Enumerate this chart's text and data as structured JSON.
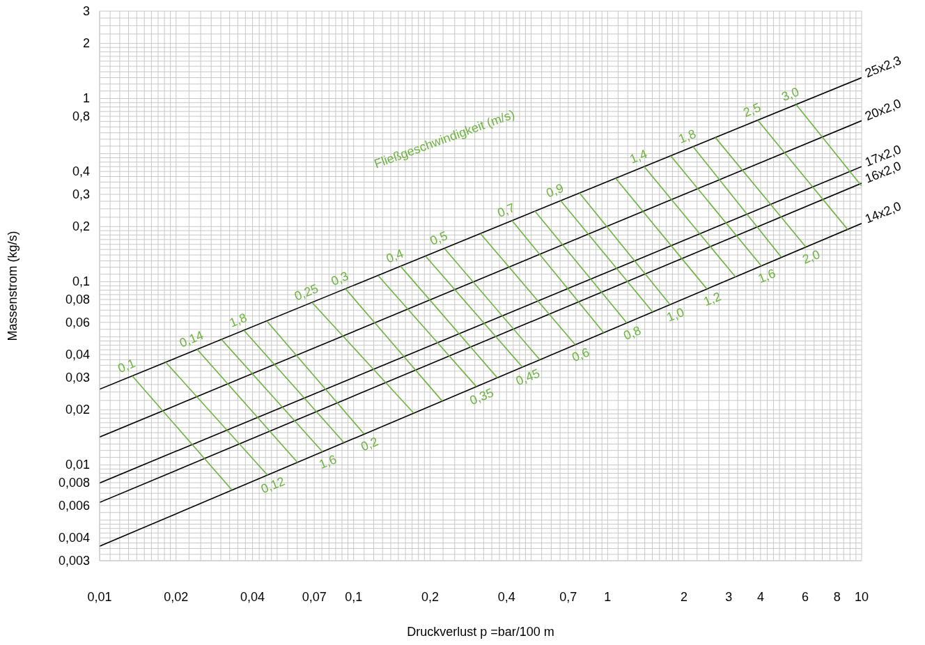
{
  "chart_data": {
    "type": "line",
    "xlabel": "Druckverlust  p =bar/100 m",
    "ylabel": "Massenstrom (kg/s)",
    "log": "xy",
    "grid": true,
    "marker": "none",
    "line_style": "solid",
    "xlim": [
      0.01,
      10
    ],
    "ylim": [
      0.003,
      3
    ],
    "xticks": [
      {
        "value": 0.01,
        "label": "0,01"
      },
      {
        "value": 0.02,
        "label": "0,02"
      },
      {
        "value": 0.04,
        "label": "0,04"
      },
      {
        "value": 0.07,
        "label": "0,07"
      },
      {
        "value": 0.1,
        "label": "0,1"
      },
      {
        "value": 0.2,
        "label": "0,2"
      },
      {
        "value": 0.4,
        "label": "0,4"
      },
      {
        "value": 0.7,
        "label": "0,7"
      },
      1,
      2,
      3,
      4,
      6,
      8,
      10
    ],
    "yticks": [
      {
        "value": 0.003,
        "label": "0,003"
      },
      {
        "value": 0.004,
        "label": "0,004"
      },
      {
        "value": 0.006,
        "label": "0,006"
      },
      {
        "value": 0.008,
        "label": "0,008"
      },
      {
        "value": 0.01,
        "label": "0,01"
      },
      {
        "value": 0.02,
        "label": "0,02"
      },
      {
        "value": 0.03,
        "label": "0,03"
      },
      {
        "value": 0.04,
        "label": "0,04"
      },
      {
        "value": 0.06,
        "label": "0,06"
      },
      {
        "value": 0.08,
        "label": "0,08"
      },
      {
        "value": 0.1,
        "label": "0,1"
      },
      {
        "value": 0.2,
        "label": "0,2"
      },
      {
        "value": 0.3,
        "label": "0,3"
      },
      {
        "value": 0.4,
        "label": "0,4"
      },
      {
        "value": 0.8,
        "label": "0,8"
      },
      1,
      2,
      3
    ],
    "annotations": [
      "Fließgeschwindigkeit (m/s)"
    ],
    "series": [
      {
        "name": "25x2,3",
        "color": "#000000",
        "x": [
          10,
          0.01
        ],
        "values": [
          1.3,
          0.0259
        ]
      },
      {
        "name": "20x2,0",
        "color": "#000000",
        "x": [
          10,
          0.01
        ],
        "values": [
          0.757,
          0.0142
        ]
      },
      {
        "name": "17x2,0",
        "color": "#000000",
        "x": [
          10,
          0.01
        ],
        "values": [
          0.425,
          0.00797
        ]
      },
      {
        "name": "16x2,0",
        "color": "#000000",
        "x": [
          10,
          0.01
        ],
        "values": [
          0.345,
          0.00624
        ]
      },
      {
        "name": "14x2,0",
        "color": "#000000",
        "x": [
          10,
          0.01
        ],
        "values": [
          0.208,
          0.0036
        ]
      },
      {
        "name": "0,1",
        "color": "#6db33f",
        "x": [
          0.01345,
          0.0332
        ],
        "values": [
          0.0306,
          0.00729
        ]
      },
      {
        "name": "0,12",
        "color": "#6db33f",
        "x": [
          0.0458,
          0.0182
        ],
        "values": [
          0.00881,
          0.0364
        ]
      },
      {
        "name": "0,14",
        "color": "#6db33f",
        "x": [
          0.0242,
          0.0601
        ],
        "values": [
          0.0428,
          0.01033
        ]
      },
      {
        "name": "1,6",
        "color": "#6db33f",
        "x": [
          0.0754,
          0.0302
        ],
        "values": [
          0.0118,
          0.0484
        ]
      },
      {
        "name": "1,8",
        "color": "#6db33f",
        "x": [
          0.037,
          0.0917
        ],
        "values": [
          0.0543,
          0.01324
        ]
      },
      {
        "name": "0,2",
        "color": "#6db33f",
        "x": [
          0.11,
          0.0455
        ],
        "values": [
          0.01475,
          0.0611
        ]
      },
      {
        "name": "0,25",
        "color": "#6db33f",
        "x": [
          0.0686,
          0.1724
        ],
        "values": [
          0.0771,
          0.0192
        ]
      },
      {
        "name": "0,3",
        "color": "#6db33f",
        "x": [
          0.0929,
          0.2234
        ],
        "values": [
          0.0916,
          0.0223
        ]
      },
      {
        "name": "0,35",
        "color": "#6db33f",
        "x": [
          0.304,
          0.125
        ],
        "values": [
          0.0268,
          0.108
        ]
      },
      {
        "name": "0,4",
        "color": "#6db33f",
        "x": [
          0.153,
          0.368
        ],
        "values": [
          0.1216,
          0.0299
        ]
      },
      {
        "name": "0,45",
        "color": "#6db33f",
        "x": [
          0.462,
          0.192
        ],
        "values": [
          0.0342,
          0.138
        ]
      },
      {
        "name": "0,5",
        "color": "#6db33f",
        "x": [
          0.228,
          0.541
        ],
        "values": [
          0.152,
          0.0375
        ]
      },
      {
        "name": "0,6",
        "color": "#6db33f",
        "x": [
          0.746,
          0.316
        ],
        "values": [
          0.0453,
          0.183
        ]
      },
      {
        "name": "0,7",
        "color": "#6db33f",
        "x": [
          0.42,
          0.966
        ],
        "values": [
          0.216,
          0.0527
        ]
      },
      {
        "name": "0,8",
        "color": "#6db33f",
        "x": [
          1.19,
          0.517
        ],
        "values": [
          0.0596,
          0.243
        ]
      },
      {
        "name": "0,9",
        "color": "#6db33f",
        "x": [
          0.653,
          1.503
        ],
        "values": [
          0.277,
          0.0684
        ]
      },
      {
        "name": "1,0",
        "color": "#6db33f",
        "x": [
          1.761,
          0.775
        ],
        "values": [
          0.075,
          0.305
        ]
      },
      {
        "name": "1,2",
        "color": "#6db33f",
        "x": [
          2.46,
          1.076
        ],
        "values": [
          0.0913,
          0.367
        ]
      },
      {
        "name": "1,4",
        "color": "#6db33f",
        "x": [
          1.394,
          3.19
        ],
        "values": [
          0.425,
          0.106
        ]
      },
      {
        "name": "1,6",
        "color": "#6db33f",
        "x": [
          4.03,
          1.772
        ],
        "values": [
          0.122,
          0.487
        ]
      },
      {
        "name": "1,8",
        "color": "#6db33f",
        "x": [
          2.169,
          4.83
        ],
        "values": [
          0.547,
          0.136
        ]
      },
      {
        "name": "2,0",
        "color": "#6db33f",
        "x": [
          6.03,
          2.655
        ],
        "values": [
          0.155,
          0.613
        ]
      },
      {
        "name": "2,5",
        "color": "#6db33f",
        "x": [
          3.9,
          8.81
        ],
        "values": [
          0.762,
          0.193
        ]
      },
      {
        "name": "3,0",
        "color": "#6db33f",
        "x": [
          5.52,
          10
        ],
        "values": [
          0.929,
          0.333
        ]
      }
    ]
  }
}
